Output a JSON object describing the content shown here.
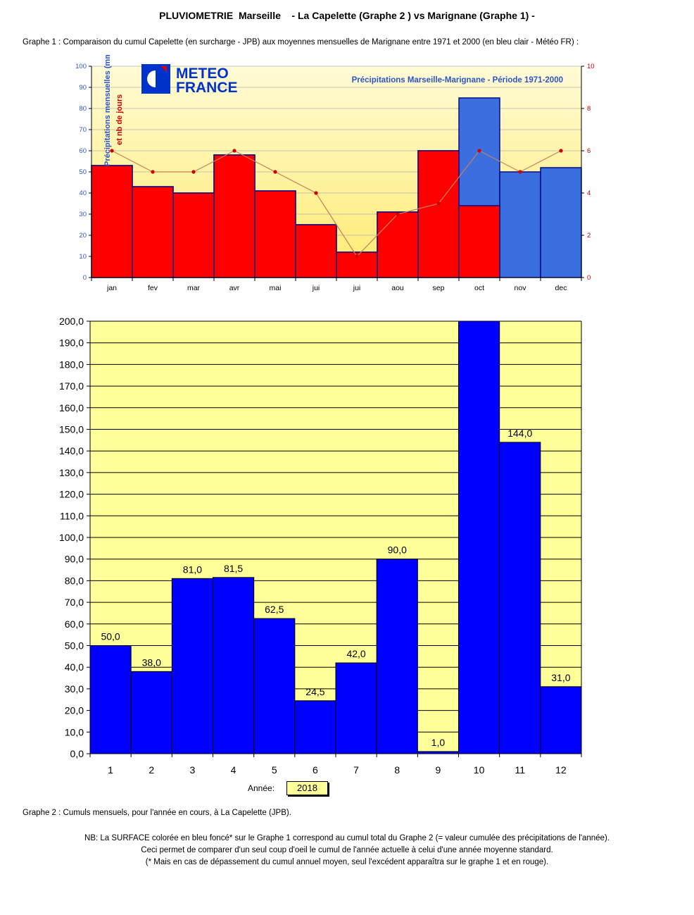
{
  "header": {
    "title": "PLUVIOMETRIE  Marseille    - La Capelette (Graphe 2 ) vs Marignane (Graphe 1) -"
  },
  "graph1": {
    "caption": "Graphe 1 : Comparaison du cumul Capelette (en surcharge - JPB) aux moyennes mensuelles de Marignane entre 1971 et 2000 (en bleu clair - Météo FR) :",
    "logo_line1": "METEO",
    "logo_line2": "FRANCE",
    "period_label": "Précipitations Marseille-Marignane - Période 1971-2000",
    "ylabel_left": "Précipitations mensuelles (mm)",
    "ylabel_right": "et nb de jours"
  },
  "chart_data": [
    {
      "type": "bar",
      "categories": [
        "jan",
        "fev",
        "mar",
        "avr",
        "mai",
        "jui",
        "jui",
        "aou",
        "sep",
        "oct",
        "nov",
        "dec"
      ],
      "series": [
        {
          "name": "",
          "values": [
            53,
            43,
            40,
            58,
            41,
            25,
            12,
            31,
            60,
            85,
            50,
            52
          ],
          "color": "#3b6fe0"
        },
        {
          "name": "",
          "values": [
            53,
            43,
            40,
            58,
            41,
            25,
            12,
            31,
            60,
            34,
            null,
            null
          ],
          "color": "#ff0000"
        },
        {
          "name": "",
          "axis": "right",
          "type": "line",
          "values": [
            6,
            5,
            5,
            6,
            5,
            4,
            1,
            3,
            3.5,
            6,
            5,
            6
          ],
          "color": "#cc0000"
        }
      ],
      "ylim": [
        0,
        100
      ],
      "y_ticks": [
        0,
        10,
        20,
        30,
        40,
        50,
        60,
        70,
        80,
        90,
        100
      ],
      "y2lim": [
        0,
        10
      ],
      "y2_ticks": [
        0,
        2,
        4,
        6,
        8,
        10
      ],
      "grid": true
    },
    {
      "type": "bar",
      "categories": [
        "1",
        "2",
        "3",
        "4",
        "5",
        "6",
        "7",
        "8",
        "9",
        "10",
        "11",
        "12"
      ],
      "values": [
        50.0,
        38.0,
        81.0,
        81.5,
        62.5,
        24.5,
        42.0,
        90.0,
        1.0,
        200.0,
        144.0,
        31.0
      ],
      "data_labels": [
        "50,0",
        "38,0",
        "81,0",
        "81,5",
        "62,5",
        "24,5",
        "42,0",
        "90,0",
        "1,0",
        "",
        "144,0",
        "31,0"
      ],
      "ylim": [
        0,
        200
      ],
      "y_ticks": [
        "0,0",
        "10,0",
        "20,0",
        "30,0",
        "40,0",
        "50,0",
        "60,0",
        "70,0",
        "80,0",
        "90,0",
        "100,0",
        "110,0",
        "120,0",
        "130,0",
        "140,0",
        "150,0",
        "160,0",
        "170,0",
        "180,0",
        "190,0",
        "200,0"
      ],
      "grid": true,
      "bar_color": "#0000ff",
      "background": "#ffff99"
    }
  ],
  "graph2": {
    "annee_label": "Année:",
    "annee_value": "2018",
    "caption": "Graphe 2 : Cumuls mensuels, pour l'année en cours, à La Capelette (JPB)."
  },
  "notes": {
    "line1": "NB: La SURFACE colorée en bleu foncé* sur le Graphe 1 correspond au cumul total du Graphe 2 (= valeur cumulée des précipitations de l'année).",
    "line2": "Ceci permet de comparer d'un seul coup d'oeil le cumul de l'année actuelle à celui d'une année moyenne standard.",
    "line3": "(* Mais en cas de dépassement du cumul annuel moyen, seul l'excédent apparaîtra sur le graphe 1 et en rouge)."
  }
}
